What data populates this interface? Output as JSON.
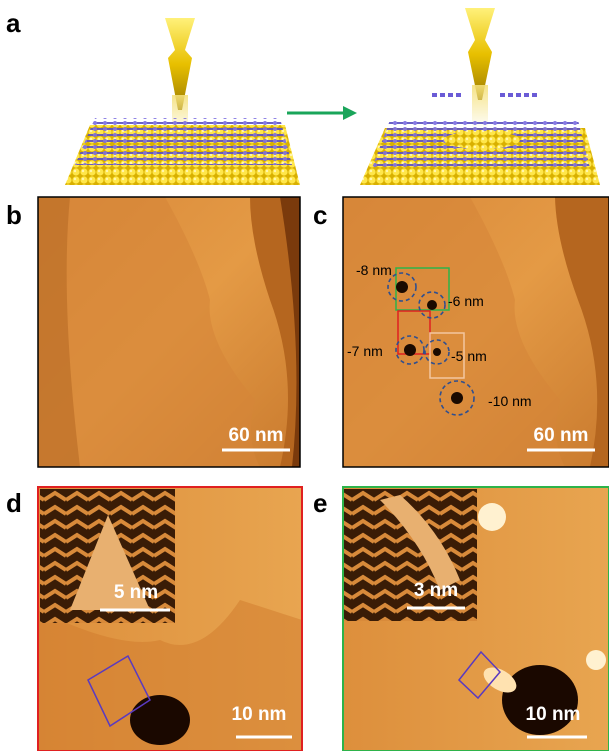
{
  "panels": {
    "a": {
      "label": "a"
    },
    "b": {
      "label": "b",
      "scale_bar": "60 nm"
    },
    "c": {
      "label": "c",
      "scale_bar": "60 nm",
      "depth_labels": [
        "-8 nm",
        "-6 nm",
        "-7 nm",
        "-5 nm",
        "-10 nm"
      ]
    },
    "d": {
      "label": "d",
      "scale_bar": "10 nm",
      "inset_scale_bar": "5 nm"
    },
    "e": {
      "label": "e",
      "scale_bar": "10 nm",
      "inset_scale_bar": "3 nm"
    }
  }
}
